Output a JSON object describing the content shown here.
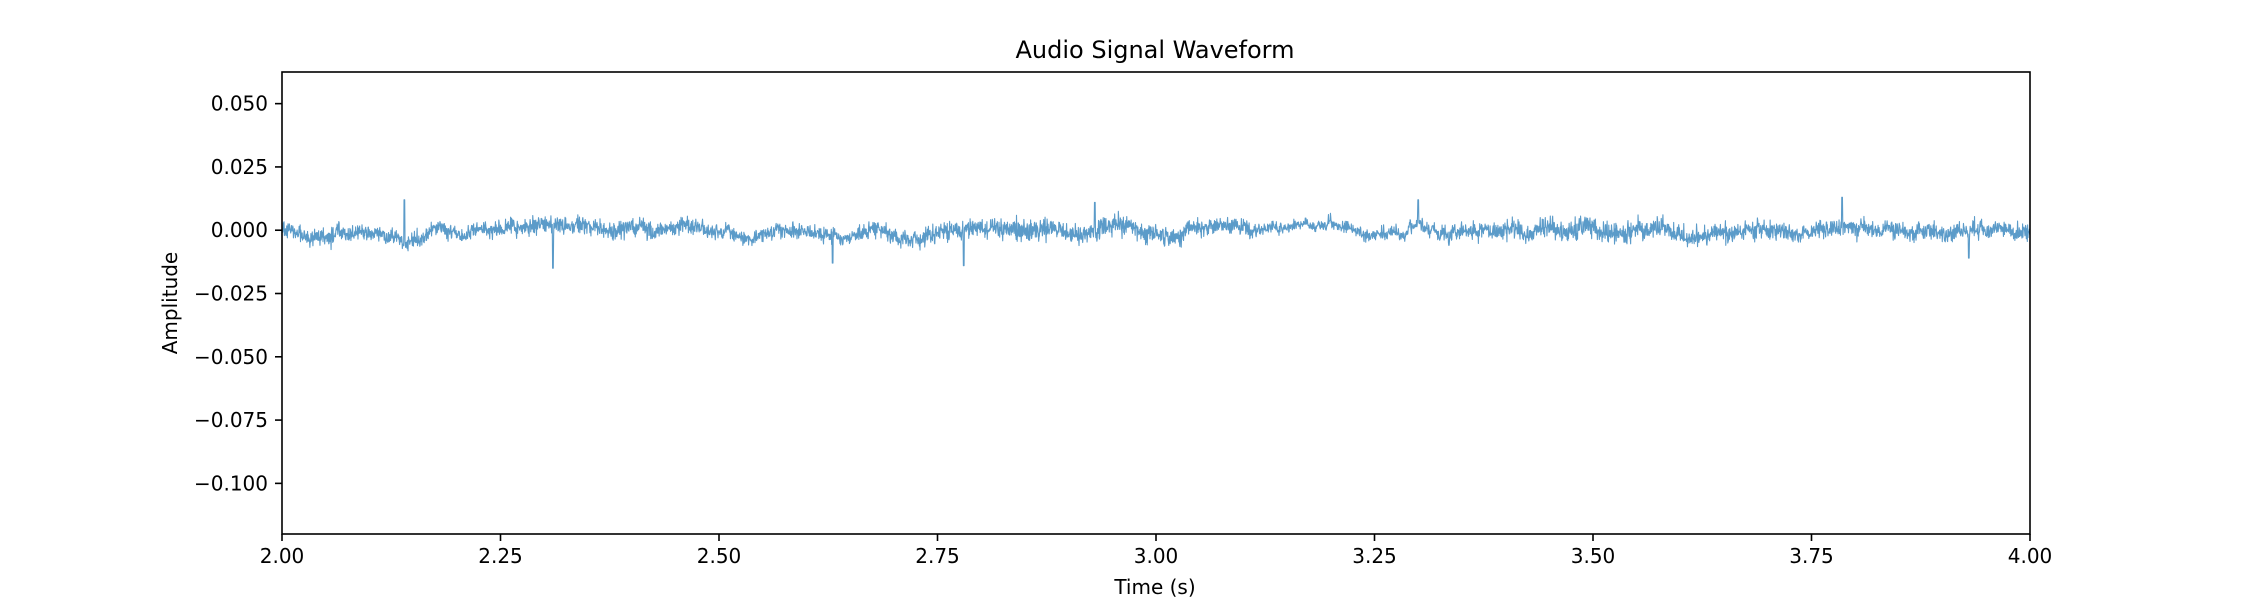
{
  "chart_data": {
    "type": "line",
    "title": "Audio Signal Waveform",
    "xlabel": "Time (s)",
    "ylabel": "Amplitude",
    "xlim": [
      2.0,
      4.0
    ],
    "ylim": [
      -0.12,
      0.0625
    ],
    "xticks": [
      2.0,
      2.25,
      2.5,
      2.75,
      3.0,
      3.25,
      3.5,
      3.75,
      4.0
    ],
    "xtick_labels": [
      "2.00",
      "2.25",
      "2.50",
      "2.75",
      "3.00",
      "3.25",
      "3.50",
      "3.75",
      "4.00"
    ],
    "yticks": [
      0.05,
      0.025,
      0.0,
      -0.025,
      -0.05,
      -0.075,
      -0.1
    ],
    "ytick_labels": [
      "0.050",
      "0.025",
      "0.000",
      "−0.025",
      "−0.050",
      "−0.075",
      "−0.100"
    ],
    "grid": false,
    "line_color": "#5b9bc9",
    "series": [
      {
        "x_start": 2.0,
        "x_end": 4.0,
        "baseline": 0.0,
        "typical_amplitude": 0.004,
        "peak_amplitude": 0.013,
        "notable_extremes": [
          {
            "x": 2.14,
            "y": 0.012
          },
          {
            "x": 2.31,
            "y": -0.015
          },
          {
            "x": 2.63,
            "y": -0.013
          },
          {
            "x": 2.78,
            "y": -0.014
          },
          {
            "x": 2.93,
            "y": 0.011
          },
          {
            "x": 3.3,
            "y": 0.012
          },
          {
            "x": 3.785,
            "y": 0.013
          },
          {
            "x": 3.93,
            "y": -0.011
          }
        ]
      }
    ]
  }
}
